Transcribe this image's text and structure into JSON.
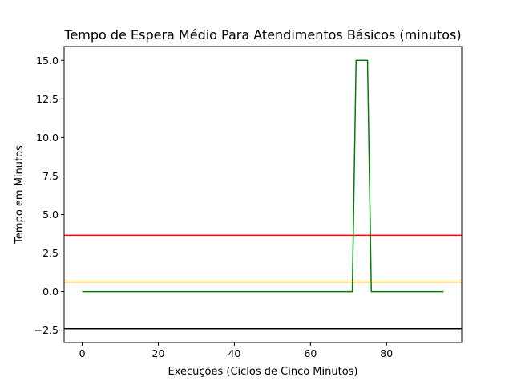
{
  "chart_data": {
    "type": "line",
    "title": "Tempo de Espera Médio Para Atendimentos Básicos (minutos)",
    "xlabel": "Execuções (Ciclos de Cinco Minutos)",
    "ylabel": "Tempo em Minutos",
    "xlim": [
      -4.75,
      99.75
    ],
    "ylim": [
      -3.3,
      15.9
    ],
    "xticks": [
      0,
      20,
      40,
      60,
      80
    ],
    "yticks": [
      -2.5,
      0.0,
      2.5,
      5.0,
      7.5,
      10.0,
      12.5,
      15.0
    ],
    "ytick_labels": [
      "−2.5",
      "0.0",
      "2.5",
      "5.0",
      "7.5",
      "10.0",
      "12.5",
      "15.0"
    ],
    "grid": false,
    "series": [
      {
        "color": "#008000",
        "x": [
          0,
          71,
          72,
          73,
          74,
          75,
          76,
          95
        ],
        "y": [
          0,
          0,
          15,
          15,
          15,
          15,
          0,
          0
        ]
      }
    ],
    "hlines": [
      {
        "y": 3.65,
        "color": "#ff0000"
      },
      {
        "y": 0.62,
        "color": "#ffa500"
      },
      {
        "y": -2.4,
        "color": "#000000"
      }
    ]
  }
}
